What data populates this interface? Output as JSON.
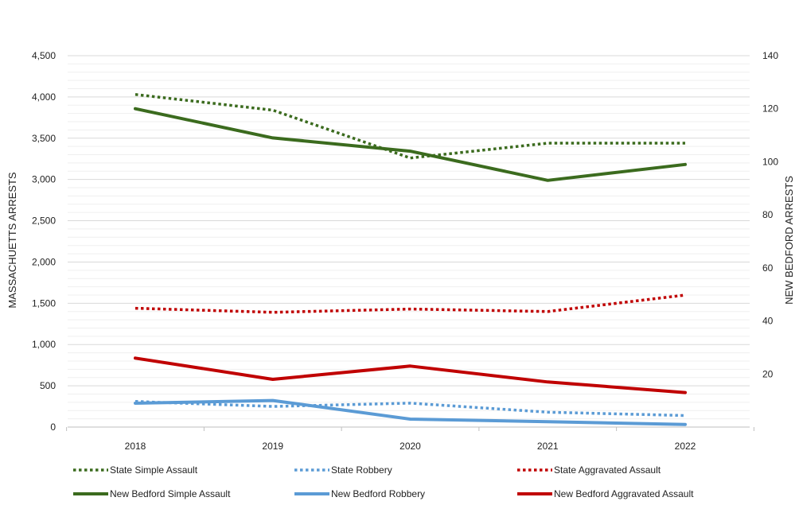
{
  "chart_data": {
    "type": "line",
    "categories": [
      "2018",
      "2019",
      "2020",
      "2021",
      "2022"
    ],
    "y_left": {
      "label": "MASSACHUETTS ARRESTS",
      "range": [
        0,
        4500
      ],
      "ticks": [
        0,
        500,
        1000,
        1500,
        2000,
        2500,
        3000,
        3500,
        4000,
        4500
      ],
      "tick_labels": [
        "0",
        "500",
        "1,000",
        "1,500",
        "2,000",
        "2,500",
        "3,000",
        "3,500",
        "4,000",
        "4,500"
      ]
    },
    "y_right": {
      "label": "NEW BEDFORD ARRESTS",
      "range": [
        0,
        140
      ],
      "ticks": [
        20,
        40,
        60,
        80,
        100,
        120,
        140
      ],
      "tick_labels": [
        "20",
        "40",
        "60",
        "80",
        "100",
        "120",
        "140"
      ]
    },
    "grid": true,
    "legend_position": "bottom",
    "series": [
      {
        "name": "State Simple Assault",
        "axis": "left",
        "values": [
          4030,
          3840,
          3260,
          3440,
          3440
        ],
        "color": "#3b6b1e",
        "style": "dotted"
      },
      {
        "name": "State Robbery",
        "axis": "left",
        "values": [
          310,
          250,
          290,
          180,
          140
        ],
        "color": "#5b9bd5",
        "style": "dotted"
      },
      {
        "name": "State Aggravated Assault",
        "axis": "left",
        "values": [
          1440,
          1390,
          1430,
          1400,
          1600
        ],
        "color": "#c00000",
        "style": "dotted"
      },
      {
        "name": "New Bedford Simple Assault",
        "axis": "right",
        "values": [
          120,
          109,
          104,
          93,
          99
        ],
        "color": "#3b6b1e",
        "style": "solid"
      },
      {
        "name": "New Bedford Robbery",
        "axis": "right",
        "values": [
          9,
          10,
          3,
          2,
          1
        ],
        "color": "#5b9bd5",
        "style": "solid"
      },
      {
        "name": "New Bedford Aggravated Assault",
        "axis": "right",
        "values": [
          26,
          18,
          23,
          17,
          13
        ],
        "color": "#c00000",
        "style": "solid"
      }
    ]
  }
}
